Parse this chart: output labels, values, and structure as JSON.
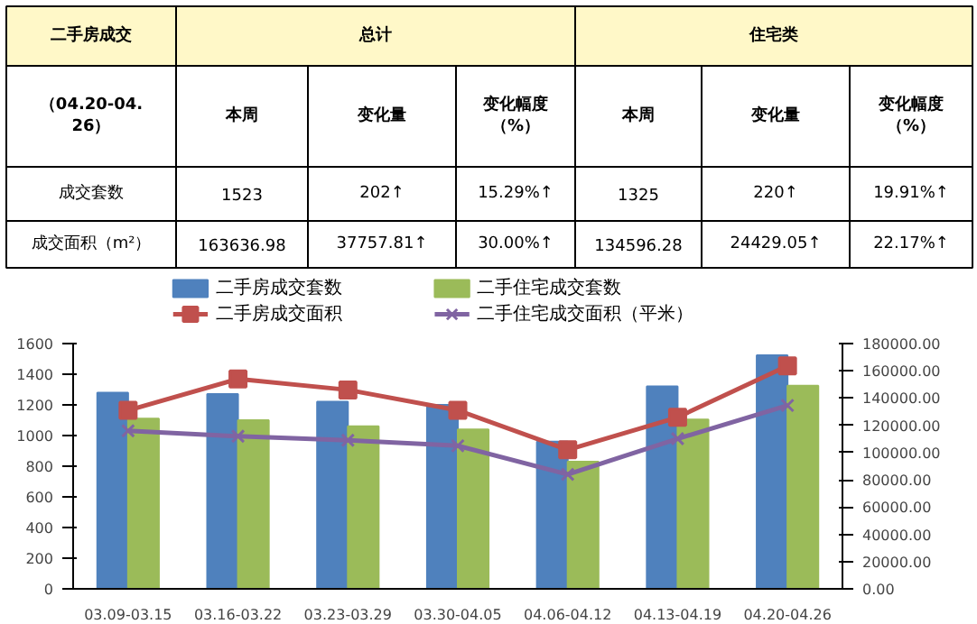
{
  "chart_data": [
    {
      "type": "other",
      "annotations": [
        "二手房成交",
        "总计",
        "住宅类",
        "（04.20-04.26）",
        "本周",
        "变化量",
        "变化幅度（%）",
        "本周",
        "变化量",
        "变化幅度（%）",
        "成交套数",
        "1523",
        "202↑",
        "15.29%↑",
        "1325",
        "220↑",
        "19.91%↑",
        "成交面积（m²）",
        "163636.98",
        "37757.81↑",
        "30.00%↑",
        "134596.28",
        "24429.05↑",
        "22.17%↑"
      ]
    },
    {
      "type": "bar",
      "categories": [
        "03.09-03.15",
        "03.16-03.22",
        "03.23-03.29",
        "03.30-04.05",
        "04.06-04.12",
        "04.13-04.19",
        "04.20-04.26"
      ],
      "ylim": [
        0,
        1600
      ],
      "yticks": [
        0,
        200,
        400,
        600,
        800,
        1000,
        1200,
        1400,
        1600
      ],
      "y2lim": [
        0,
        180000
      ],
      "y2ticks": [
        {
          "value": 0,
          "label": "0.00"
        },
        {
          "value": 20000,
          "label": "20000.00"
        },
        {
          "value": 40000,
          "label": "40000.00"
        },
        {
          "value": 60000,
          "label": "60000.00"
        },
        {
          "value": 80000,
          "label": "80000.00"
        },
        {
          "value": 100000,
          "label": "100000.00"
        },
        {
          "value": 120000,
          "label": "120000.00"
        },
        {
          "value": 140000,
          "label": "140000.00"
        },
        {
          "value": 160000,
          "label": "160000.00"
        },
        {
          "value": 180000,
          "label": "180000.00"
        }
      ],
      "legend": "top",
      "grid": false,
      "series": [
        {
          "name": "二手房成交套数",
          "type": "bar",
          "color": "#4f81bd",
          "values": [
            1280,
            1270,
            1220,
            1200,
            960,
            1321,
            1523
          ]
        },
        {
          "name": "二手住宅成交套数",
          "type": "bar",
          "color": "#9bbb59",
          "values": [
            1110,
            1100,
            1060,
            1040,
            830,
            1105,
            1325
          ]
        },
        {
          "name": "二手房成交面积",
          "type": "line",
          "axis": "y2",
          "marker": "square",
          "color": "#c0504d",
          "values": [
            131000,
            154000,
            146000,
            131000,
            102000,
            125879.17,
            163636.98
          ]
        },
        {
          "name": "二手住宅成交面积（平米）",
          "type": "line",
          "axis": "y2",
          "marker": "cross",
          "color": "#8064a2",
          "values": [
            116000,
            112000,
            109000,
            105000,
            84000,
            110167.23,
            134596.28
          ]
        }
      ]
    }
  ]
}
